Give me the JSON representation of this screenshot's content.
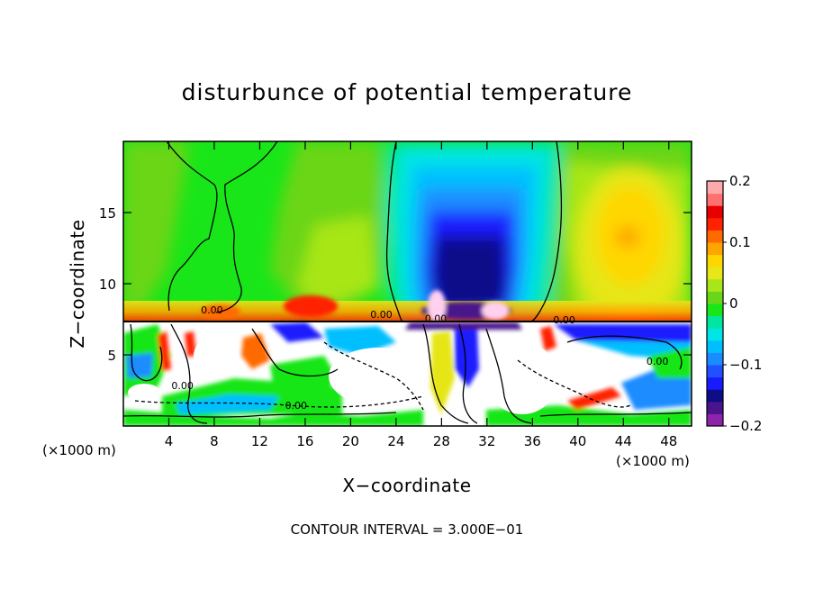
{
  "chart_data": {
    "type": "heatmap",
    "title": "disturbunce of potential temperature",
    "xlabel": "X−coordinate",
    "ylabel": "Z−coordinate",
    "x_unit": "(×1000 m)",
    "x_unit_right": "(×1000 m)",
    "footer": "CONTOUR INTERVAL = 3.000E−01",
    "xlim": [
      0,
      50
    ],
    "ylim": [
      0,
      20
    ],
    "xticks": [
      4,
      8,
      12,
      16,
      20,
      24,
      28,
      32,
      36,
      40,
      44,
      48
    ],
    "xtick_labels": [
      "4",
      "8",
      "12",
      "16",
      "20",
      "24",
      "28",
      "32",
      "36",
      "40",
      "44",
      "48"
    ],
    "yticks": [
      5,
      10,
      15
    ],
    "ytick_labels": [
      "5",
      "10",
      "15"
    ],
    "colorbar": {
      "min": -0.2,
      "max": 0.2,
      "ticks": [
        0.2,
        0.1,
        0,
        -0.1,
        -0.2
      ],
      "tick_labels": [
        "0.2",
        "0.1",
        "0",
        "−0.1",
        "−0.2"
      ],
      "levels": [
        "#8e24aa",
        "#4a148c",
        "#0d0d8a",
        "#1a1aff",
        "#2050ff",
        "#1a8cff",
        "#00bfff",
        "#00e5e5",
        "#00e6a0",
        "#19e619",
        "#6ad619",
        "#a8e619",
        "#e6e619",
        "#ffd700",
        "#ffa500",
        "#ff6a00",
        "#ff2200",
        "#e60000",
        "#ff7070",
        "#ffaaaa"
      ]
    },
    "contour_labels": [
      {
        "text": "0.00",
        "x": 7.8,
        "z": 7.9
      },
      {
        "text": "0.00",
        "x": 22.7,
        "z": 7.6
      },
      {
        "text": "0.00",
        "x": 27.5,
        "z": 7.3
      },
      {
        "text": "0.00",
        "x": 38.8,
        "z": 7.2
      },
      {
        "text": "0.00",
        "x": 5.2,
        "z": 2.6
      },
      {
        "text": "0.00",
        "x": 15.2,
        "z": 1.2
      },
      {
        "text": "0.00",
        "x": 47.0,
        "z": 4.3
      }
    ]
  }
}
